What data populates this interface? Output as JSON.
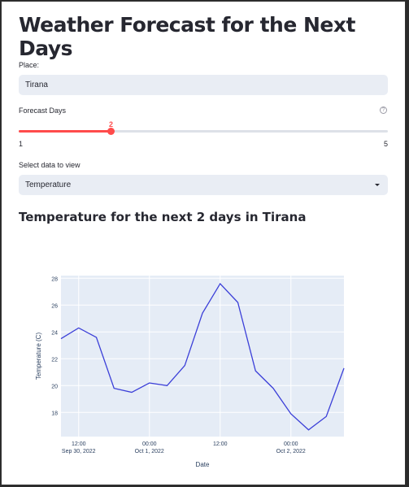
{
  "page": {
    "title": "Weather Forecast for the Next Days"
  },
  "place": {
    "label": "Place:",
    "value": "Tirana"
  },
  "forecast_days": {
    "label": "Forecast Days",
    "value": 2,
    "min": 1,
    "max": 5,
    "help_icon": "question-circle-icon"
  },
  "data_select": {
    "label": "Select data to view",
    "selected": "Temperature",
    "arrow_icon": "caret-down-icon"
  },
  "section": {
    "heading": "Temperature for the next 2 days in Tirana"
  },
  "colors": {
    "accent": "#ff4b4b",
    "line": "#3b3fd8",
    "plot_bg": "#e5ecf6",
    "input_bg": "#e9edf4"
  },
  "chart_data": {
    "type": "line",
    "title": "",
    "xlabel": "Date",
    "ylabel": "Temperature (C)",
    "x": [
      "2022-09-30 09:00",
      "2022-09-30 12:00",
      "2022-09-30 15:00",
      "2022-09-30 18:00",
      "2022-09-30 21:00",
      "2022-10-01 00:00",
      "2022-10-01 03:00",
      "2022-10-01 06:00",
      "2022-10-01 09:00",
      "2022-10-01 12:00",
      "2022-10-01 15:00",
      "2022-10-01 18:00",
      "2022-10-01 21:00",
      "2022-10-02 00:00",
      "2022-10-02 03:00",
      "2022-10-02 06:00",
      "2022-10-02 09:00"
    ],
    "series": [
      {
        "values": [
          23.5,
          24.3,
          23.6,
          19.8,
          19.5,
          20.2,
          20.0,
          21.5,
          25.4,
          27.6,
          26.2,
          21.1,
          19.8,
          17.9,
          16.7,
          17.7,
          21.3
        ]
      }
    ],
    "ylim": [
      16.2,
      28.2
    ],
    "yticks": [
      18,
      20,
      22,
      24,
      26,
      28
    ],
    "xticks": [
      {
        "x": "2022-09-30 12:00",
        "label": "12:00",
        "sublabel": "Sep 30, 2022"
      },
      {
        "x": "2022-10-01 00:00",
        "label": "00:00",
        "sublabel": "Oct 1, 2022"
      },
      {
        "x": "2022-10-01 12:00",
        "label": "12:00",
        "sublabel": ""
      },
      {
        "x": "2022-10-02 00:00",
        "label": "00:00",
        "sublabel": "Oct 2, 2022"
      }
    ],
    "grid": true,
    "legend": "none"
  }
}
